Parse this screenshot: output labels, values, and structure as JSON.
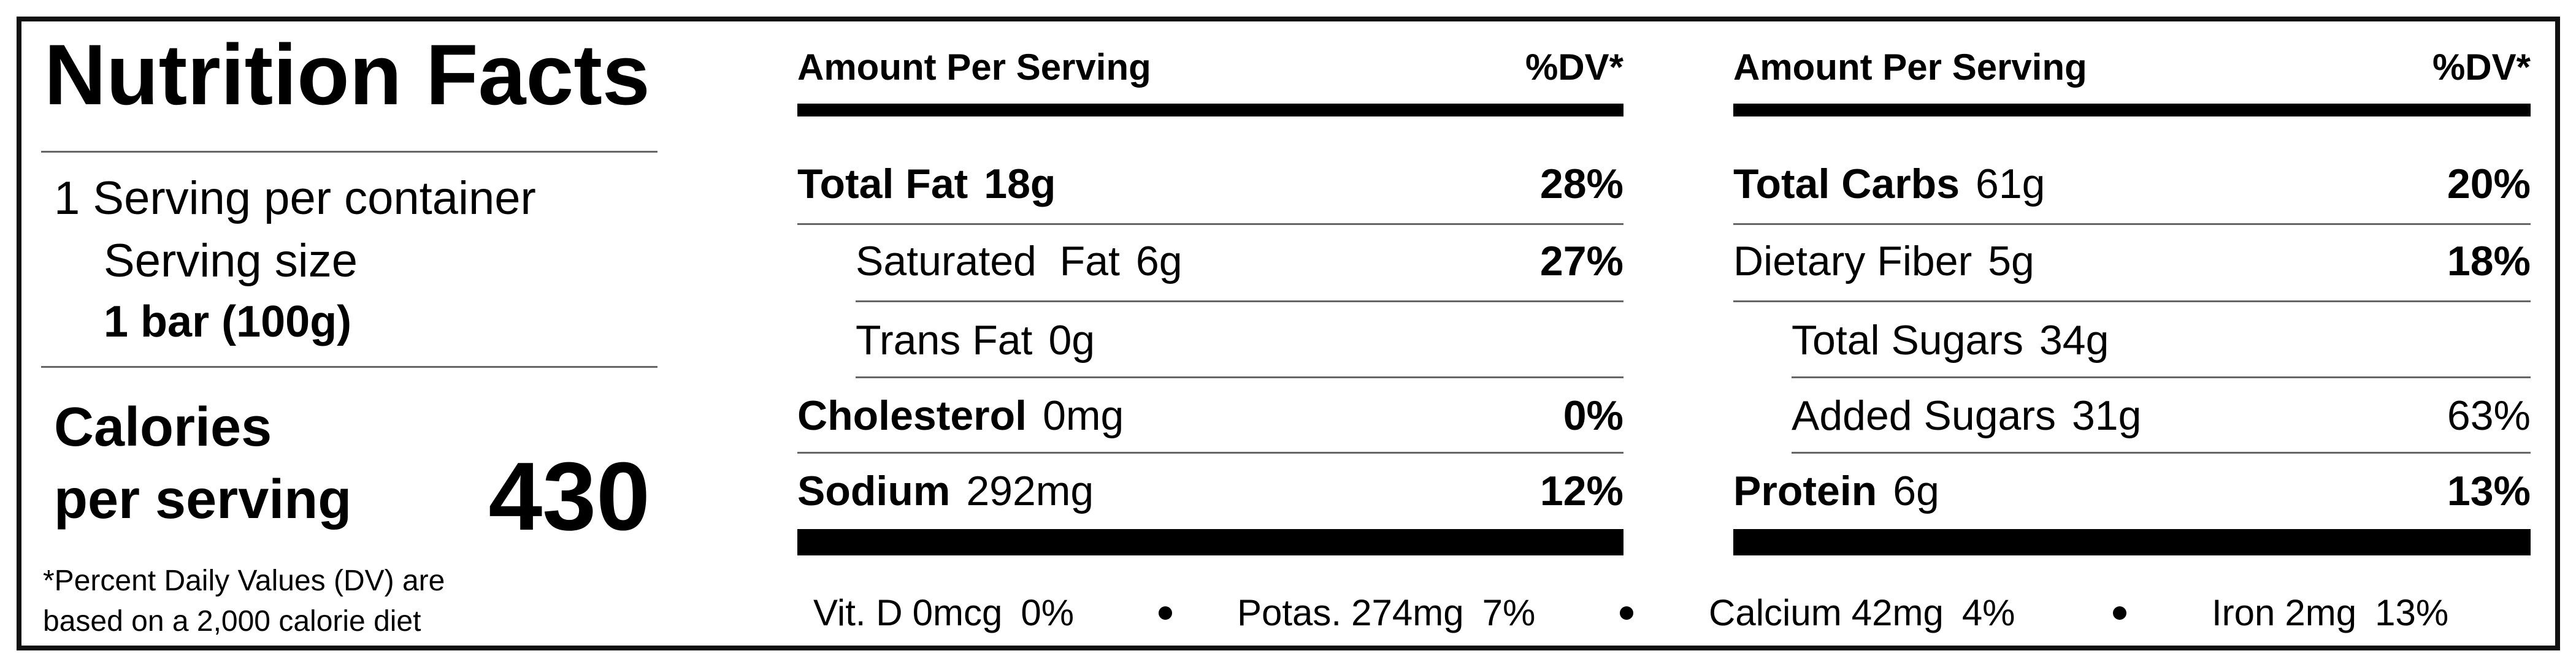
{
  "title": "Nutrition Facts",
  "servings": "1 Serving per container",
  "serving_size": {
    "label": "Serving size",
    "value": "1 bar (100g)"
  },
  "calories": {
    "label_lines": [
      "Calories",
      "per serving"
    ],
    "value": 430
  },
  "footnote": [
    "*Percent Daily Values (DV) are",
    "based on a 2,000 calorie diet"
  ],
  "columns": [
    {
      "header": {
        "amount": "Amount Per Serving",
        "dv": "%DV*"
      },
      "rows": [
        {
          "name": "Total Fat",
          "amount": "18g",
          "dv": "28%"
        },
        {
          "name": "Saturated  Fat",
          "amount": "6g",
          "dv": "27%"
        },
        {
          "name": "Trans Fat",
          "amount": "0g"
        },
        {
          "name": "Cholesterol",
          "amount": "0mg",
          "dv": "0%"
        },
        {
          "name": "Sodium",
          "amount": "292mg",
          "dv": "12%"
        }
      ]
    },
    {
      "header": {
        "amount": "Amount Per Serving",
        "dv": "%DV*"
      },
      "rows": [
        {
          "name": "Total Carbs",
          "amount": "61g",
          "dv": "20%"
        },
        {
          "name": "Dietary Fiber",
          "amount": "5g",
          "dv": "18%"
        },
        {
          "name": "Total Sugars",
          "amount": "34g"
        },
        {
          "name": "Added Sugars",
          "amount": "31g",
          "dv": "63%"
        },
        {
          "name": "Protein",
          "amount": "6g",
          "dv": "13%"
        }
      ]
    }
  ],
  "minerals": [
    {
      "name": "Vit. D",
      "amount": "0mcg",
      "dv": "0%"
    },
    {
      "name": "Potas.",
      "amount": "274mg",
      "dv": "7%"
    },
    {
      "name": "Calcium",
      "amount": "42mg",
      "dv": "4%"
    },
    {
      "name": "Iron",
      "amount": "2mg",
      "dv": "13%"
    }
  ]
}
